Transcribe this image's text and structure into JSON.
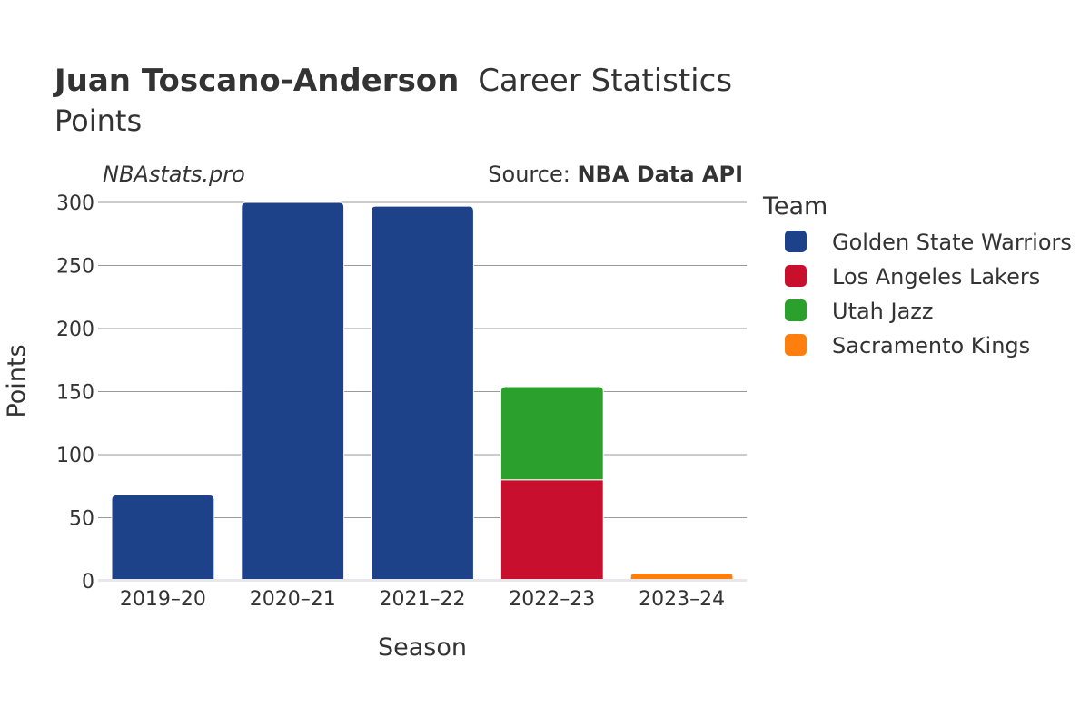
{
  "header": {
    "title_bold": "Juan Toscano-Anderson",
    "title_rest": "Career Statistics",
    "subtitle": "Points"
  },
  "watermark": "NBAstats.pro",
  "source": {
    "prefix": "Source: ",
    "name": "NBA Data API"
  },
  "legend": {
    "title": "Team",
    "placement": "right"
  },
  "colors": {
    "Golden State Warriors": "#1d428a",
    "Los Angeles Lakers": "#c8102e",
    "Utah Jazz": "#2ca02c",
    "Sacramento Kings": "#ff7f0e"
  },
  "chart_data": {
    "type": "bar",
    "stacked": true,
    "title": "Juan Toscano-Anderson Career Statistics",
    "subtitle": "Points",
    "xlabel": "Season",
    "ylabel": "Points",
    "ylim": [
      0,
      300
    ],
    "yticks": [
      0,
      50,
      100,
      150,
      200,
      250,
      300
    ],
    "grid": true,
    "categories": [
      "2019–20",
      "2020–21",
      "2021–22",
      "2022–23",
      "2023–24"
    ],
    "series": [
      {
        "name": "Golden State Warriors",
        "values": [
          68,
          300,
          297,
          0,
          0
        ]
      },
      {
        "name": "Los Angeles Lakers",
        "values": [
          0,
          0,
          0,
          80,
          0
        ]
      },
      {
        "name": "Utah Jazz",
        "values": [
          0,
          0,
          0,
          74,
          0
        ]
      },
      {
        "name": "Sacramento Kings",
        "values": [
          0,
          0,
          0,
          0,
          6
        ]
      }
    ]
  }
}
